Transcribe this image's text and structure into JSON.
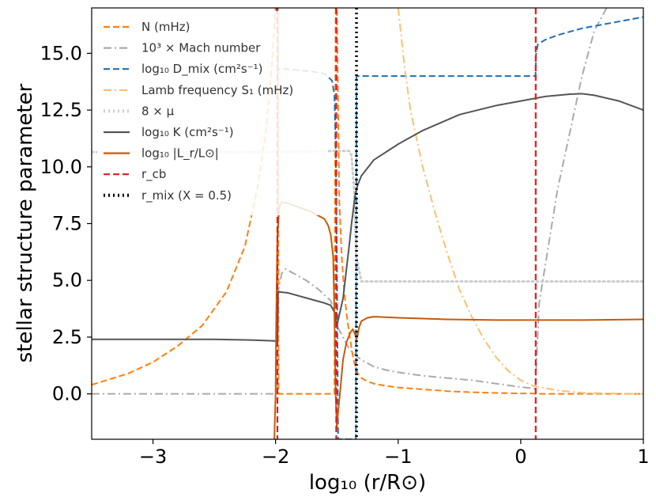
{
  "chart_data": {
    "type": "line",
    "title": "",
    "xlabel": "log₁₀ (r/R⊙)",
    "ylabel": "stellar structure parameter",
    "xlim": [
      -3.5,
      1.0
    ],
    "ylim": [
      -2.0,
      17.0
    ],
    "xticks": [
      -3,
      -2,
      -1,
      0,
      1
    ],
    "xtick_labels": [
      "−3",
      "−2",
      "−1",
      "0",
      "1"
    ],
    "yticks": [
      0.0,
      2.5,
      5.0,
      7.5,
      10.0,
      12.5,
      15.0
    ],
    "ytick_labels": [
      "0.0",
      "2.5",
      "5.0",
      "7.5",
      "10.0",
      "12.5",
      "15.0"
    ],
    "grid": false,
    "legend_position": "top-left",
    "series": [
      {
        "name": "N (mHz)",
        "color": "#ff7f0e",
        "style": "dashed",
        "x": [
          -3.5,
          -3.2,
          -3.0,
          -2.8,
          -2.6,
          -2.4,
          -2.25,
          -2.15,
          -2.08,
          -2.03,
          -2.0,
          -1.98,
          -1.975,
          -1.52,
          -1.51,
          -1.5,
          -1.48,
          -1.46,
          -1.44,
          -1.42,
          -1.4,
          -1.38,
          -1.36,
          -1.33,
          -1.3,
          -1.25,
          -1.2,
          -1.1,
          -1.0,
          -0.8,
          -0.6,
          -0.4,
          -0.2,
          0.0,
          0.1,
          0.13,
          0.5,
          1.0
        ],
        "y": [
          0.4,
          0.9,
          1.4,
          2.1,
          3.0,
          4.5,
          6.5,
          9.0,
          11.5,
          14.5,
          17.0,
          17.0,
          0.0,
          0.0,
          17.0,
          17.0,
          8.5,
          6.0,
          4.5,
          3.5,
          2.7,
          2.0,
          1.4,
          0.9,
          0.7,
          0.55,
          0.45,
          0.35,
          0.28,
          0.2,
          0.12,
          0.07,
          0.04,
          0.02,
          0.02,
          0.0,
          0.0,
          0.0
        ]
      },
      {
        "name": "10³ × Mach number",
        "color": "#aaaaaa",
        "style": "dashdot",
        "x": [
          -3.5,
          -2.5,
          -2.0,
          -1.985,
          -1.98,
          -1.95,
          -1.92,
          -1.85,
          -1.75,
          -1.65,
          -1.55,
          -1.515,
          -1.5,
          -1.45,
          -1.4,
          -1.35,
          -1.3,
          -1.25,
          -1.2,
          -1.1,
          -1.0,
          -0.8,
          -0.6,
          -0.4,
          -0.2,
          0.0,
          0.1,
          0.12,
          0.125,
          0.15,
          0.3,
          0.5,
          0.6,
          0.7
        ],
        "y": [
          0.0,
          0.0,
          0.0,
          0.0,
          4.5,
          5.3,
          5.5,
          5.3,
          5.0,
          4.6,
          4.1,
          3.5,
          3.0,
          2.5,
          2.0,
          1.7,
          1.5,
          1.35,
          1.2,
          1.05,
          0.95,
          0.8,
          0.7,
          0.6,
          0.45,
          0.3,
          0.25,
          0.2,
          1.0,
          4.0,
          9.0,
          14.0,
          16.0,
          17.0
        ]
      },
      {
        "name": "log₁₀ D_mix (cm²s⁻¹)",
        "color": "#1f6fb4",
        "style": "dashed",
        "x": [
          -1.99,
          -1.98,
          -1.9,
          -1.8,
          -1.7,
          -1.6,
          -1.54,
          -1.52,
          -1.51,
          -1.5,
          -1.49,
          -1.35,
          -1.345,
          -1.34,
          -1.3,
          -1.0,
          -0.5,
          0.0,
          0.12,
          0.125,
          0.14,
          0.2,
          0.3,
          0.5,
          0.8,
          1.0
        ],
        "y": [
          17.0,
          14.3,
          14.3,
          14.25,
          14.2,
          14.1,
          13.8,
          13.2,
          11.0,
          6.0,
          -2.0,
          -2.0,
          -2.0,
          14.0,
          14.0,
          14.0,
          14.0,
          14.0,
          14.0,
          15.0,
          15.4,
          15.6,
          15.8,
          16.1,
          16.4,
          16.6
        ]
      },
      {
        "name": "Lamb frequency S₁ (mHz)",
        "color": "#fdbf6f",
        "style": "dashdot",
        "x": [
          -1.0,
          -0.95,
          -0.9,
          -0.8,
          -0.7,
          -0.6,
          -0.5,
          -0.4,
          -0.3,
          -0.2,
          -0.1,
          0.0,
          0.1,
          0.3,
          0.5,
          0.7,
          1.0
        ],
        "y": [
          17.0,
          14.5,
          12.5,
          10.0,
          8.0,
          6.2,
          4.6,
          3.4,
          2.4,
          1.6,
          1.0,
          0.6,
          0.35,
          0.15,
          0.05,
          0.02,
          0.0
        ]
      },
      {
        "name": "8 × μ",
        "color": "#cccccc",
        "style": "dotted",
        "x": [
          -3.5,
          -2.0,
          -1.5,
          -1.4,
          -1.38,
          -1.36,
          -1.34,
          -1.3,
          0.0,
          1.0
        ],
        "y": [
          10.65,
          10.65,
          10.7,
          10.7,
          10.5,
          9.0,
          6.0,
          4.95,
          4.95,
          4.95
        ]
      },
      {
        "name": "log₁₀ K (cm²s⁻¹)",
        "color": "#555555",
        "style": "solid",
        "x": [
          -3.5,
          -3.0,
          -2.5,
          -2.2,
          -2.0,
          -1.985,
          -1.98,
          -1.9,
          -1.8,
          -1.7,
          -1.6,
          -1.55,
          -1.52,
          -1.5,
          -1.45,
          -1.4,
          -1.38,
          -1.35,
          -1.33,
          -1.3,
          -1.2,
          -1.0,
          -0.8,
          -0.5,
          -0.2,
          0.0,
          0.2,
          0.4,
          0.5,
          0.6,
          0.8,
          1.0
        ],
        "y": [
          2.4,
          2.4,
          2.4,
          2.37,
          2.33,
          2.33,
          4.5,
          4.45,
          4.3,
          4.15,
          4.0,
          3.9,
          3.6,
          3.0,
          4.2,
          6.5,
          7.5,
          8.8,
          9.2,
          9.6,
          10.3,
          11.0,
          11.6,
          12.3,
          12.7,
          12.9,
          13.1,
          13.2,
          13.22,
          13.15,
          12.9,
          12.5
        ]
      },
      {
        "name": "log₁₀ |L_r/L⊙|",
        "color": "#c85a0a",
        "style": "solid",
        "x": [
          -2.01,
          -2.0,
          -1.995,
          -1.985,
          -1.97,
          -1.95,
          -1.9,
          -1.8,
          -1.7,
          -1.6,
          -1.57,
          -1.55,
          -1.53,
          -1.52,
          -1.51,
          -1.5,
          -1.49,
          -1.47,
          -1.45,
          -1.42,
          -1.39,
          -1.37,
          -1.35,
          -1.34,
          -1.33,
          -1.32,
          -1.3,
          -1.25,
          -1.2,
          -1.1,
          -1.0,
          -0.6,
          -0.2,
          0.0,
          0.5,
          1.0
        ],
        "y": [
          -2.0,
          0.0,
          3.0,
          7.0,
          8.2,
          8.45,
          8.4,
          8.2,
          8.0,
          7.7,
          7.4,
          7.0,
          6.0,
          3.5,
          0.0,
          -1.5,
          -0.8,
          0.3,
          1.5,
          2.3,
          2.7,
          2.85,
          2.6,
          2.4,
          2.6,
          2.9,
          3.2,
          3.35,
          3.4,
          3.38,
          3.35,
          3.28,
          3.25,
          3.25,
          3.25,
          3.28
        ]
      },
      {
        "name": "r_cb",
        "color": "#e31a1c",
        "style": "dashed",
        "vlines": [
          -1.985,
          -1.505,
          0.122
        ]
      },
      {
        "name": "r_mix (X = 0.5)",
        "color": "#000000",
        "style": "dotted",
        "vlines": [
          -1.34
        ]
      }
    ]
  }
}
